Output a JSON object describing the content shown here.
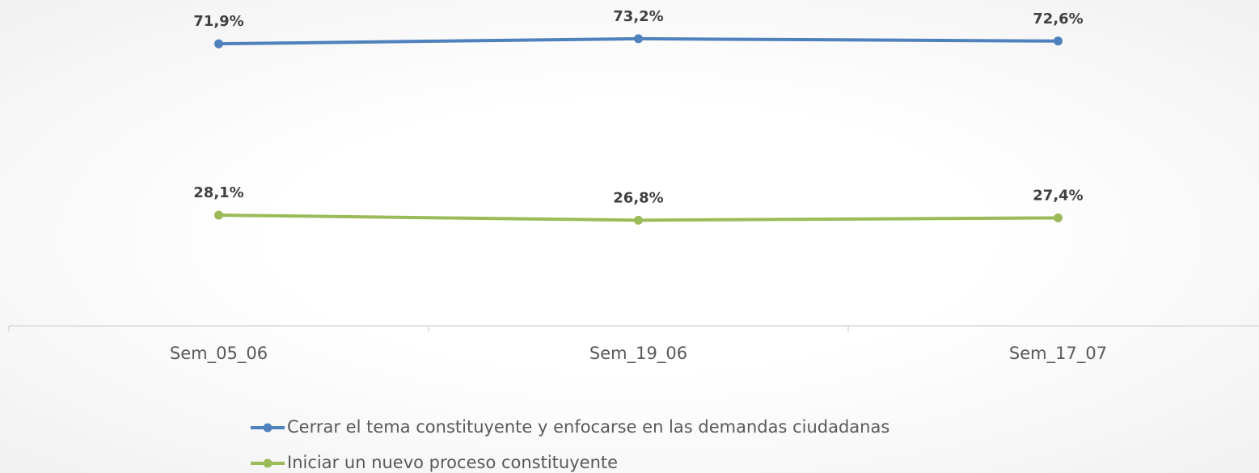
{
  "chart_data": {
    "type": "line",
    "categories": [
      "Sem_05_06",
      "Sem_19_06",
      "Sem_17_07"
    ],
    "series": [
      {
        "name": "Cerrar el tema constituyente y enfocarse en las demandas ciudadanas",
        "color": "#4f81bd",
        "values": [
          71.9,
          73.2,
          72.6
        ],
        "value_labels": [
          "71,9%",
          "73,2%",
          "72,6%"
        ]
      },
      {
        "name": "Iniciar un nuevo proceso constituyente",
        "color": "#9bbb59",
        "values": [
          28.1,
          26.8,
          27.4
        ],
        "value_labels": [
          "28,1%",
          "26,8%",
          "27,4%"
        ]
      }
    ],
    "ylim": [
      0,
      80
    ],
    "legend": "bottom"
  }
}
